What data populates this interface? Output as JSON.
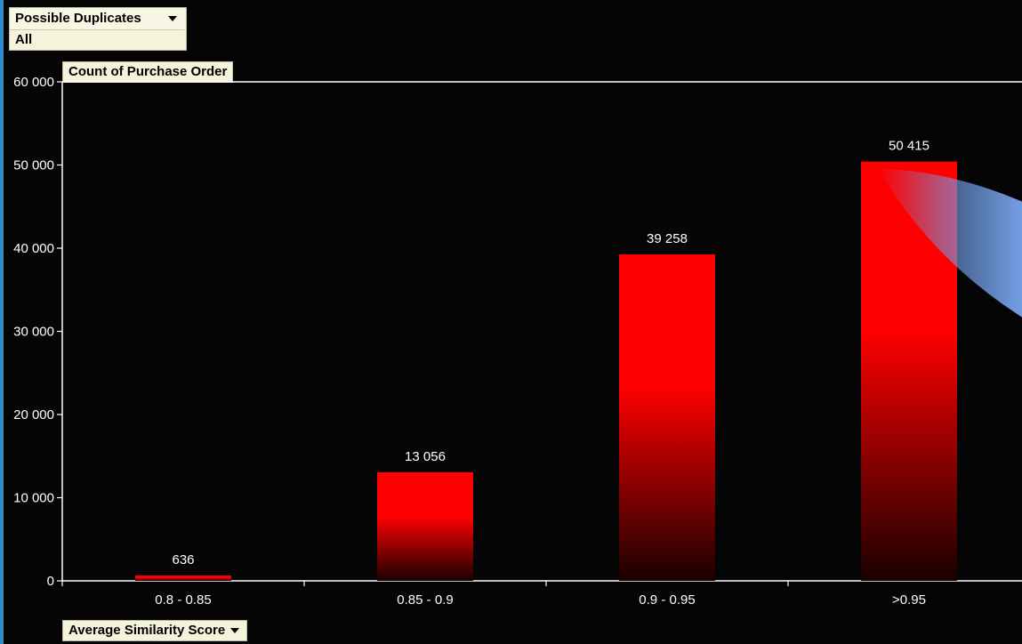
{
  "page_filter": {
    "field_label": "Possible Duplicates",
    "selected_value": "All"
  },
  "measure_label": "Count of Purchase Order",
  "axis_field_label": "Average Similarity Score",
  "colors": {
    "background": "#050505",
    "bar_top": "#ff0000",
    "bar_bottom": "#1a0000",
    "axis": "#ffffff",
    "text": "#ffffff",
    "field_button_bg": "#f6f3dc",
    "highlight_blue": "#6f9de8"
  },
  "chart_data": {
    "type": "bar",
    "categories": [
      "0.8 - 0.85",
      "0.85 - 0.9",
      "0.9 - 0.95",
      ">0.95"
    ],
    "series": [
      {
        "values": [
          636,
          13056,
          39258,
          50415
        ],
        "labels": [
          "636",
          "13 056",
          "39 258",
          "50 415"
        ]
      }
    ],
    "ylim": [
      0,
      60000
    ],
    "yticks": [
      0,
      10000,
      20000,
      30000,
      40000,
      50000,
      60000
    ],
    "ytick_labels": [
      "0",
      "10 000",
      "20 000",
      "30 000",
      "40 000",
      "50 000",
      "60 000"
    ],
    "grid": false,
    "legend": "none"
  }
}
